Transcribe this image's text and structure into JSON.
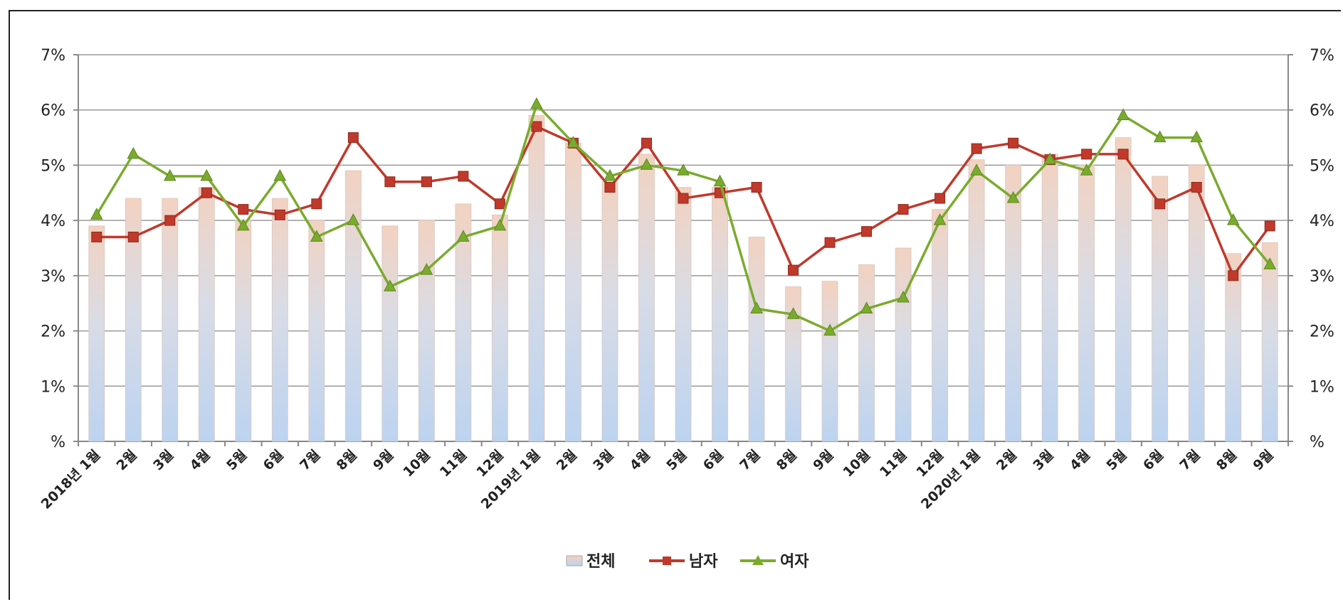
{
  "colors": {
    "male": "#c0392b",
    "female": "#7aab2e",
    "bar_top": "#f3d2c0",
    "bar_bottom": "#bcd3f0",
    "grid": "#9a9a9a"
  },
  "chart_data": {
    "type": "bar",
    "combo": "bar+line",
    "y_tick_labels": [
      "%",
      "1%",
      "2%",
      "3%",
      "4%",
      "5%",
      "6%",
      "7%"
    ],
    "ylim": [
      0,
      7
    ],
    "grid": true,
    "legend_position": "bottom",
    "categories": [
      "2018년 1월",
      "2월",
      "3월",
      "4월",
      "5월",
      "6월",
      "7월",
      "8월",
      "9월",
      "10월",
      "11월",
      "12월",
      "2019년 1월",
      "2월",
      "3월",
      "4월",
      "5월",
      "6월",
      "7월",
      "8월",
      "9월",
      "10월",
      "11월",
      "12월",
      "2020년 1월",
      "2월",
      "3월",
      "4월",
      "5월",
      "6월",
      "7월",
      "8월",
      "9월"
    ],
    "series": [
      {
        "name": "전체",
        "type": "bar",
        "values": [
          3.9,
          4.4,
          4.4,
          4.6,
          4.0,
          4.4,
          4.0,
          4.9,
          3.9,
          4.0,
          4.3,
          4.1,
          5.9,
          5.4,
          4.7,
          5.2,
          4.6,
          4.6,
          3.7,
          2.8,
          2.9,
          3.2,
          3.5,
          4.2,
          5.1,
          5.0,
          5.2,
          5.0,
          5.5,
          4.8,
          5.0,
          3.4,
          3.6
        ]
      },
      {
        "name": "남자",
        "type": "line",
        "values": [
          3.7,
          3.7,
          4.0,
          4.5,
          4.2,
          4.1,
          4.3,
          5.5,
          4.7,
          4.7,
          4.8,
          4.3,
          5.7,
          5.4,
          4.6,
          5.4,
          4.4,
          4.5,
          4.6,
          3.1,
          3.6,
          3.8,
          4.2,
          4.4,
          5.3,
          5.4,
          5.1,
          5.2,
          5.2,
          4.3,
          4.6,
          3.0,
          3.9
        ]
      },
      {
        "name": "여자",
        "type": "line",
        "values": [
          4.1,
          5.2,
          4.8,
          4.8,
          3.9,
          4.8,
          3.7,
          4.0,
          2.8,
          3.1,
          3.7,
          3.9,
          6.1,
          5.4,
          4.8,
          5.0,
          4.9,
          4.7,
          2.4,
          2.3,
          2.0,
          2.4,
          2.6,
          4.0,
          4.9,
          4.4,
          5.1,
          4.9,
          5.9,
          5.5,
          5.5,
          4.0,
          3.2
        ]
      }
    ]
  }
}
